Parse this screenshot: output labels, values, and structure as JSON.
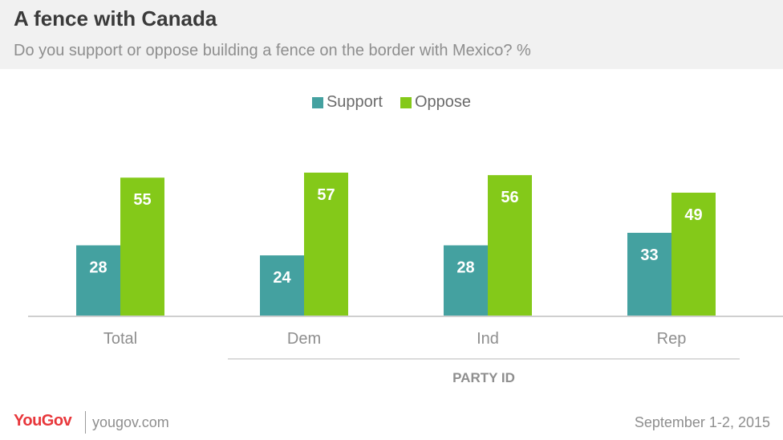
{
  "header": {
    "title": "A fence with Canada",
    "subtitle": "Do you support or oppose building a fence on the border with Mexico? %"
  },
  "colors": {
    "support": "#44a1a0",
    "oppose": "#84c919",
    "header_bg": "#f1f1f1",
    "brand": "#e8373b"
  },
  "chart_data": {
    "type": "bar",
    "title": "A fence with Canada",
    "subtitle": "Do you support or oppose building a fence on the border with Mexico? %",
    "categories": [
      "Total",
      "Dem",
      "Ind",
      "Rep"
    ],
    "series": [
      {
        "name": "Support",
        "values": [
          28,
          24,
          28,
          33
        ]
      },
      {
        "name": "Oppose",
        "values": [
          55,
          57,
          56,
          49
        ]
      }
    ],
    "group_label": "PARTY ID",
    "ylim": [
      0,
      57
    ],
    "grid": false,
    "legend_position": "top-center"
  },
  "footer": {
    "logo": "YouGov",
    "site": "yougov.com",
    "date": "September 1-2, 2015"
  }
}
